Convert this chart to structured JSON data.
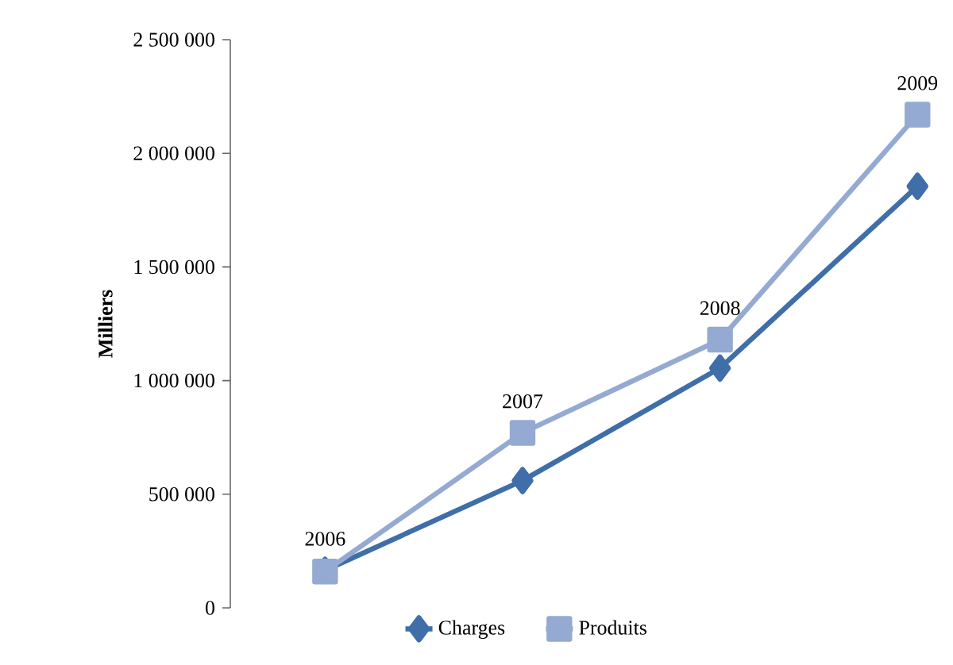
{
  "chart_data": {
    "type": "line",
    "ylabel": "Milliers",
    "categories": [
      "2006",
      "2007",
      "2008",
      "2009"
    ],
    "series": [
      {
        "name": "Charges",
        "color": "#3f6ea8",
        "marker": "diamond",
        "values": [
          165000,
          560000,
          1055000,
          1855000
        ]
      },
      {
        "name": "Produits",
        "color": "#95aad2",
        "marker": "square",
        "values": [
          160000,
          770000,
          1180000,
          2170000
        ]
      }
    ],
    "ylim": [
      0,
      2500000
    ],
    "yticks": [
      0,
      {
        "value": 500000,
        "label": "500 000"
      },
      {
        "value": 1000000,
        "label": "1 000 000"
      },
      {
        "value": 1500000,
        "label": "1 500 000"
      },
      {
        "value": 2000000,
        "label": "2 000 000"
      },
      {
        "value": 2500000,
        "label": "2 500 000"
      }
    ],
    "legend": "bottom",
    "grid": false,
    "line_style": "solid"
  }
}
